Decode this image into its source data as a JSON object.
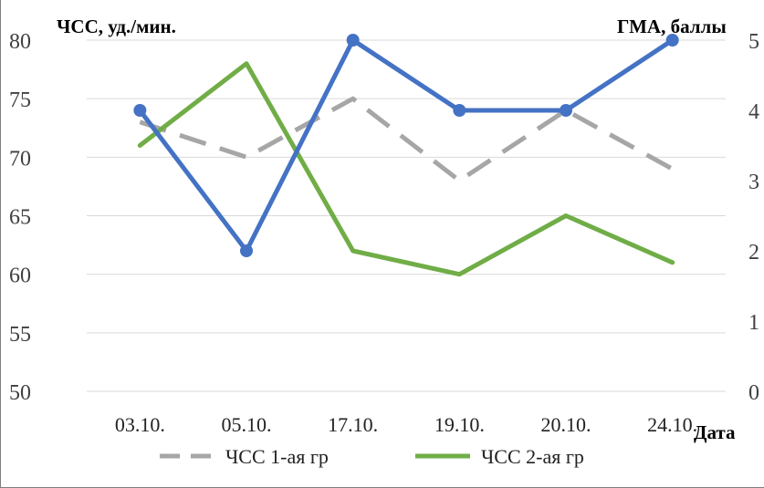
{
  "chart_data": {
    "type": "line",
    "categories": [
      "03.10.",
      "05.10.",
      "17.10.",
      "19.10.",
      "20.10.",
      "24.10."
    ],
    "xlabel": "Дата",
    "ylabel_left": "ЧСС, уд./мин.",
    "ylabel_right": "ГМА, баллы",
    "ylim_left": [
      50,
      80
    ],
    "yticks_left": [
      "50",
      "55",
      "60",
      "65",
      "70",
      "75",
      "80"
    ],
    "ylim_right": [
      0,
      5
    ],
    "yticks_right": [
      "0",
      "1",
      "2",
      "3",
      "4",
      "5"
    ],
    "grid": true,
    "legend_position": "bottom",
    "series": [
      {
        "name": "ЧСС 1-ая гр",
        "axis": "left",
        "style": "dashed",
        "color": "#a6a6a6",
        "markers": false,
        "values": [
          73,
          70,
          75,
          68,
          74,
          69
        ]
      },
      {
        "name": "ЧСС 2-ая гр",
        "axis": "left",
        "style": "solid",
        "color": "#70ad47",
        "markers": false,
        "values": [
          71,
          78,
          62,
          60,
          65,
          61
        ]
      },
      {
        "name": "",
        "axis": "right",
        "style": "solid",
        "color": "#4472c4",
        "markers": true,
        "values": [
          4,
          2,
          5,
          4,
          4,
          5
        ]
      }
    ]
  }
}
